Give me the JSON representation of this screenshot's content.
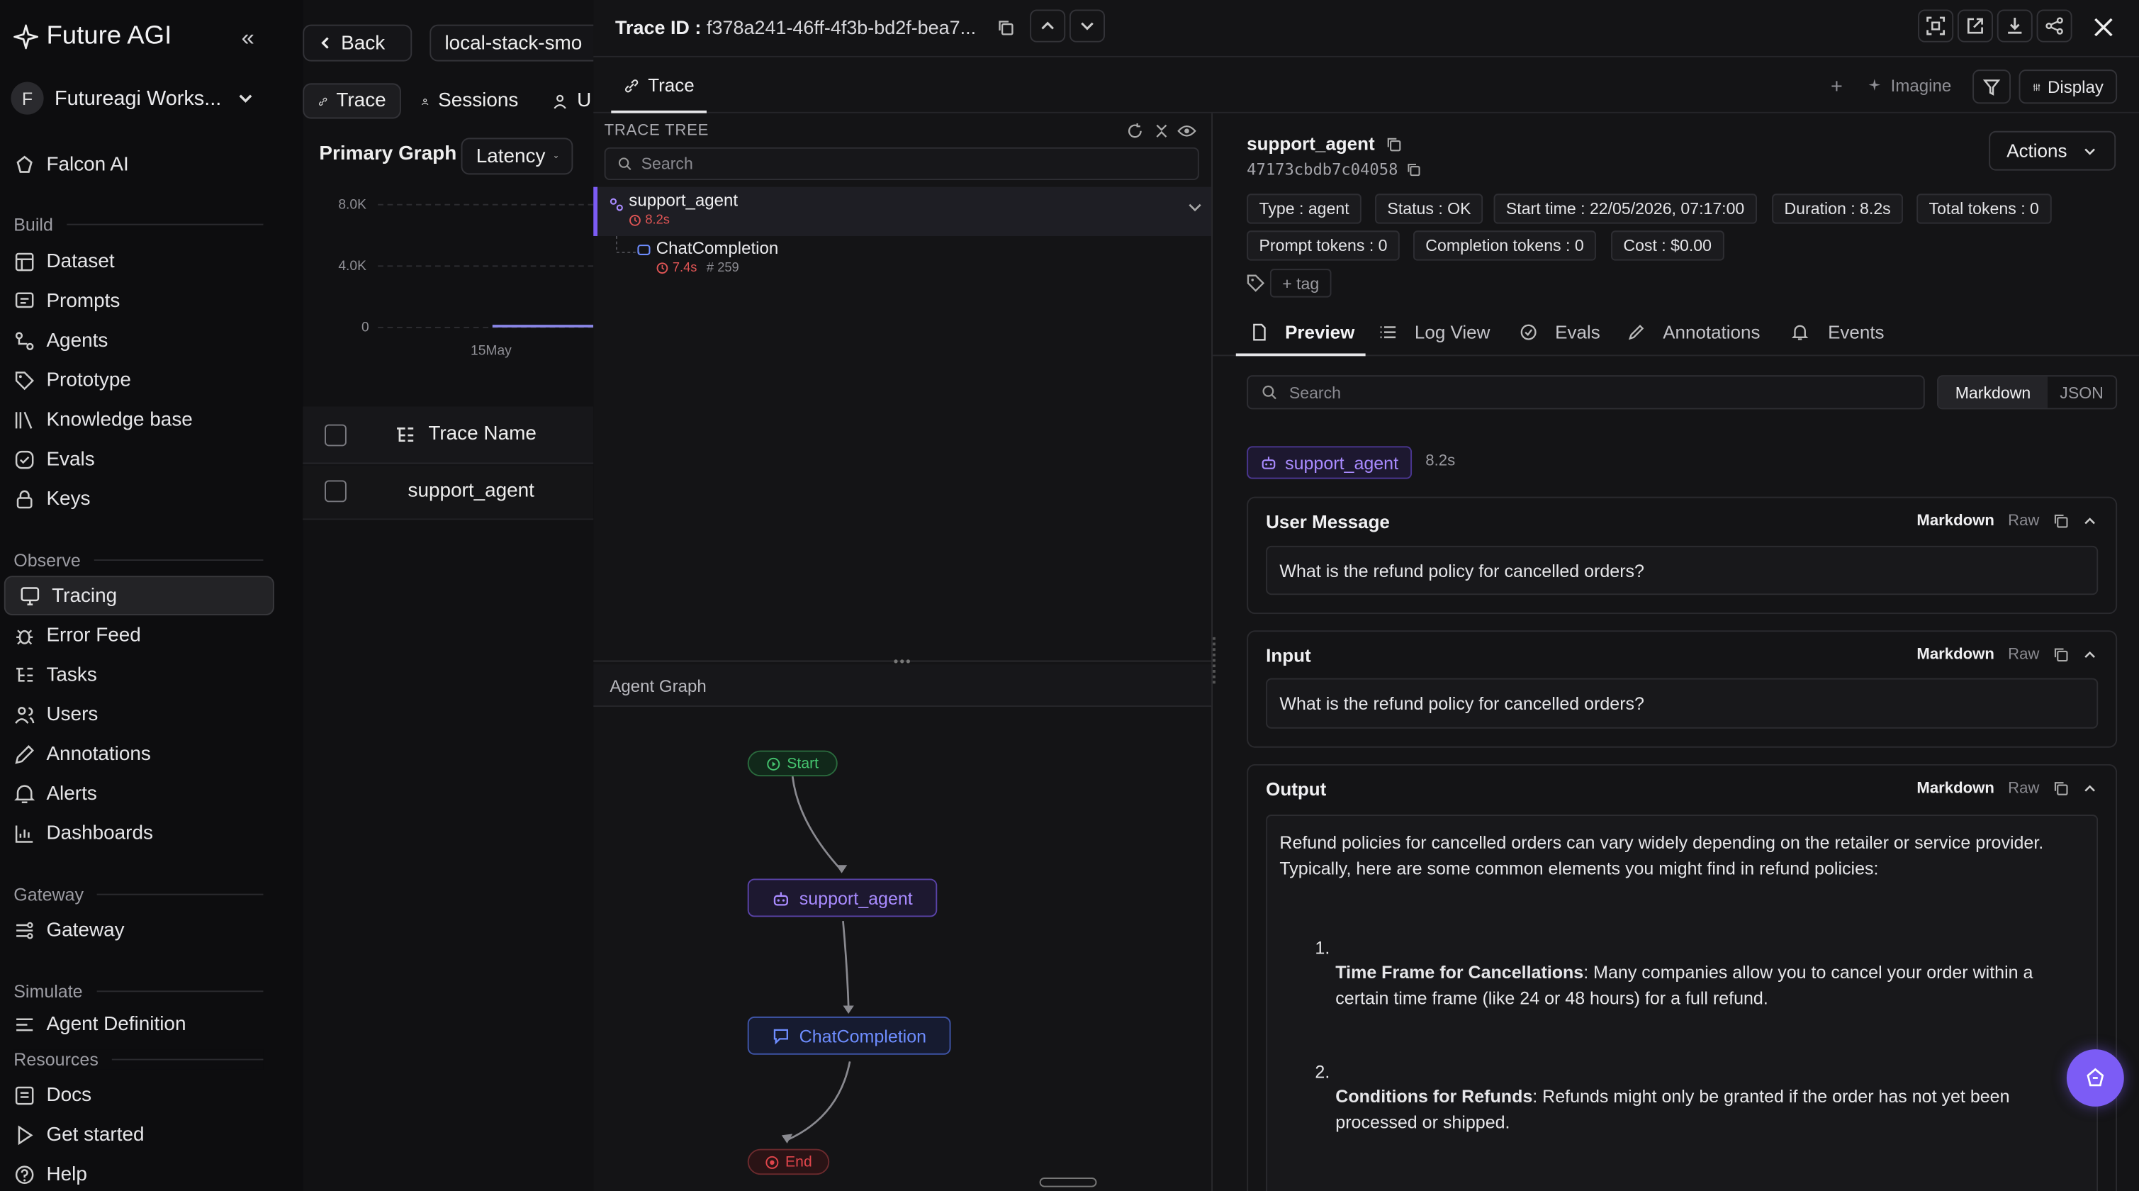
{
  "app": {
    "name": "Future AGI",
    "workspace": "Futureagi Works...",
    "workspace_initial": "F"
  },
  "sidebar": {
    "falcon": "Falcon AI",
    "sections": {
      "build": "Build",
      "observe": "Observe",
      "gateway": "Gateway",
      "simulate": "Simulate",
      "resources": "Resources"
    },
    "build_items": [
      {
        "label": "Dataset",
        "icon": "table-icon"
      },
      {
        "label": "Prompts",
        "icon": "prompt-icon"
      },
      {
        "label": "Agents",
        "icon": "agents-icon"
      },
      {
        "label": "Prototype",
        "icon": "tag-icon"
      },
      {
        "label": "Knowledge base",
        "icon": "books-icon"
      },
      {
        "label": "Evals",
        "icon": "check-circle-icon"
      },
      {
        "label": "Keys",
        "icon": "lock-icon"
      }
    ],
    "observe_items": [
      {
        "label": "Tracing",
        "icon": "monitor-icon",
        "active": true
      },
      {
        "label": "Error Feed",
        "icon": "bug-icon"
      },
      {
        "label": "Tasks",
        "icon": "tasks-icon"
      },
      {
        "label": "Users",
        "icon": "users-icon"
      },
      {
        "label": "Annotations",
        "icon": "annotations-icon"
      },
      {
        "label": "Alerts",
        "icon": "bell-icon"
      },
      {
        "label": "Dashboards",
        "icon": "chart-icon"
      }
    ],
    "gateway_items": [
      {
        "label": "Gateway",
        "icon": "gateway-icon"
      }
    ],
    "simulate_items": [
      {
        "label": "Agent Definition",
        "icon": "agent-def-icon"
      }
    ],
    "resource_items": [
      {
        "label": "Docs",
        "icon": "doc-icon"
      },
      {
        "label": "Get started",
        "icon": "play-icon"
      },
      {
        "label": "Help",
        "icon": "help-icon"
      }
    ]
  },
  "middle": {
    "back": "Back",
    "project": "local-stack-smo",
    "tabs": [
      "Trace",
      "Sessions",
      "U"
    ],
    "primary_graph": "Primary Graph",
    "metric": "Latency",
    "y_ticks": [
      "8.0K",
      "4.0K",
      "0"
    ],
    "x_tick": "15May",
    "col_trace_name": "Trace Name",
    "row": "support_agent"
  },
  "topbar": {
    "trace_id_label": "Trace ID :",
    "trace_id": "f378a241-46ff-4f3b-bd2f-bea7..."
  },
  "tabs": {
    "trace": "Trace",
    "imagine": "Imagine",
    "display": "Display"
  },
  "tree": {
    "title": "TRACE TREE",
    "search_placeholder": "Search",
    "nodes": [
      {
        "name": "support_agent",
        "latency": "8.2s"
      },
      {
        "name": "ChatCompletion",
        "latency": "7.4s",
        "tokens": "259"
      }
    ],
    "graph_title": "Agent Graph",
    "graph_nodes": {
      "start": "Start",
      "agent": "support_agent",
      "llm": "ChatCompletion",
      "end": "End"
    }
  },
  "detail": {
    "name": "support_agent",
    "span_id": "47173cbdb7c04058",
    "actions": "Actions",
    "chips": [
      "Type : agent",
      "Status : OK",
      "Start time : 22/05/2026, 07:17:00",
      "Duration : 8.2s",
      "Total tokens : 0",
      "Prompt tokens : 0",
      "Completion tokens : 0",
      "Cost : $0.00"
    ],
    "add_tag": "+ tag",
    "tabs": [
      "Preview",
      "Log View",
      "Evals",
      "Annotations",
      "Events"
    ],
    "search_placeholder": "Search",
    "view_toggle": [
      "Markdown",
      "JSON"
    ],
    "badge": "support_agent",
    "badge_time": "8.2s",
    "card_tools": {
      "markdown": "Markdown",
      "raw": "Raw"
    },
    "user_message": {
      "title": "User Message",
      "text": "What is the refund policy for cancelled orders?"
    },
    "input": {
      "title": "Input",
      "text": "What is the refund policy for cancelled orders?"
    },
    "output": {
      "title": "Output",
      "intro": "Refund policies for cancelled orders can vary widely depending on the retailer or service provider. Typically, here are some common elements you might find in refund policies:",
      "items": [
        {
          "num": "1.",
          "bold": "Time Frame for Cancellations",
          "text": ": Many companies allow you to cancel your order within a certain time frame (like 24 or 48 hours) for a full refund."
        },
        {
          "num": "2.",
          "bold": "Conditions for Refunds",
          "text": ": Refunds might only be granted if the order has not yet been processed or shipped."
        }
      ]
    }
  },
  "colors": {
    "accent": "#7c5cf5",
    "agent_node": "#a98bff",
    "llm_node": "#6e8dff",
    "start": "#3fbf6a",
    "end": "#e0454b"
  }
}
